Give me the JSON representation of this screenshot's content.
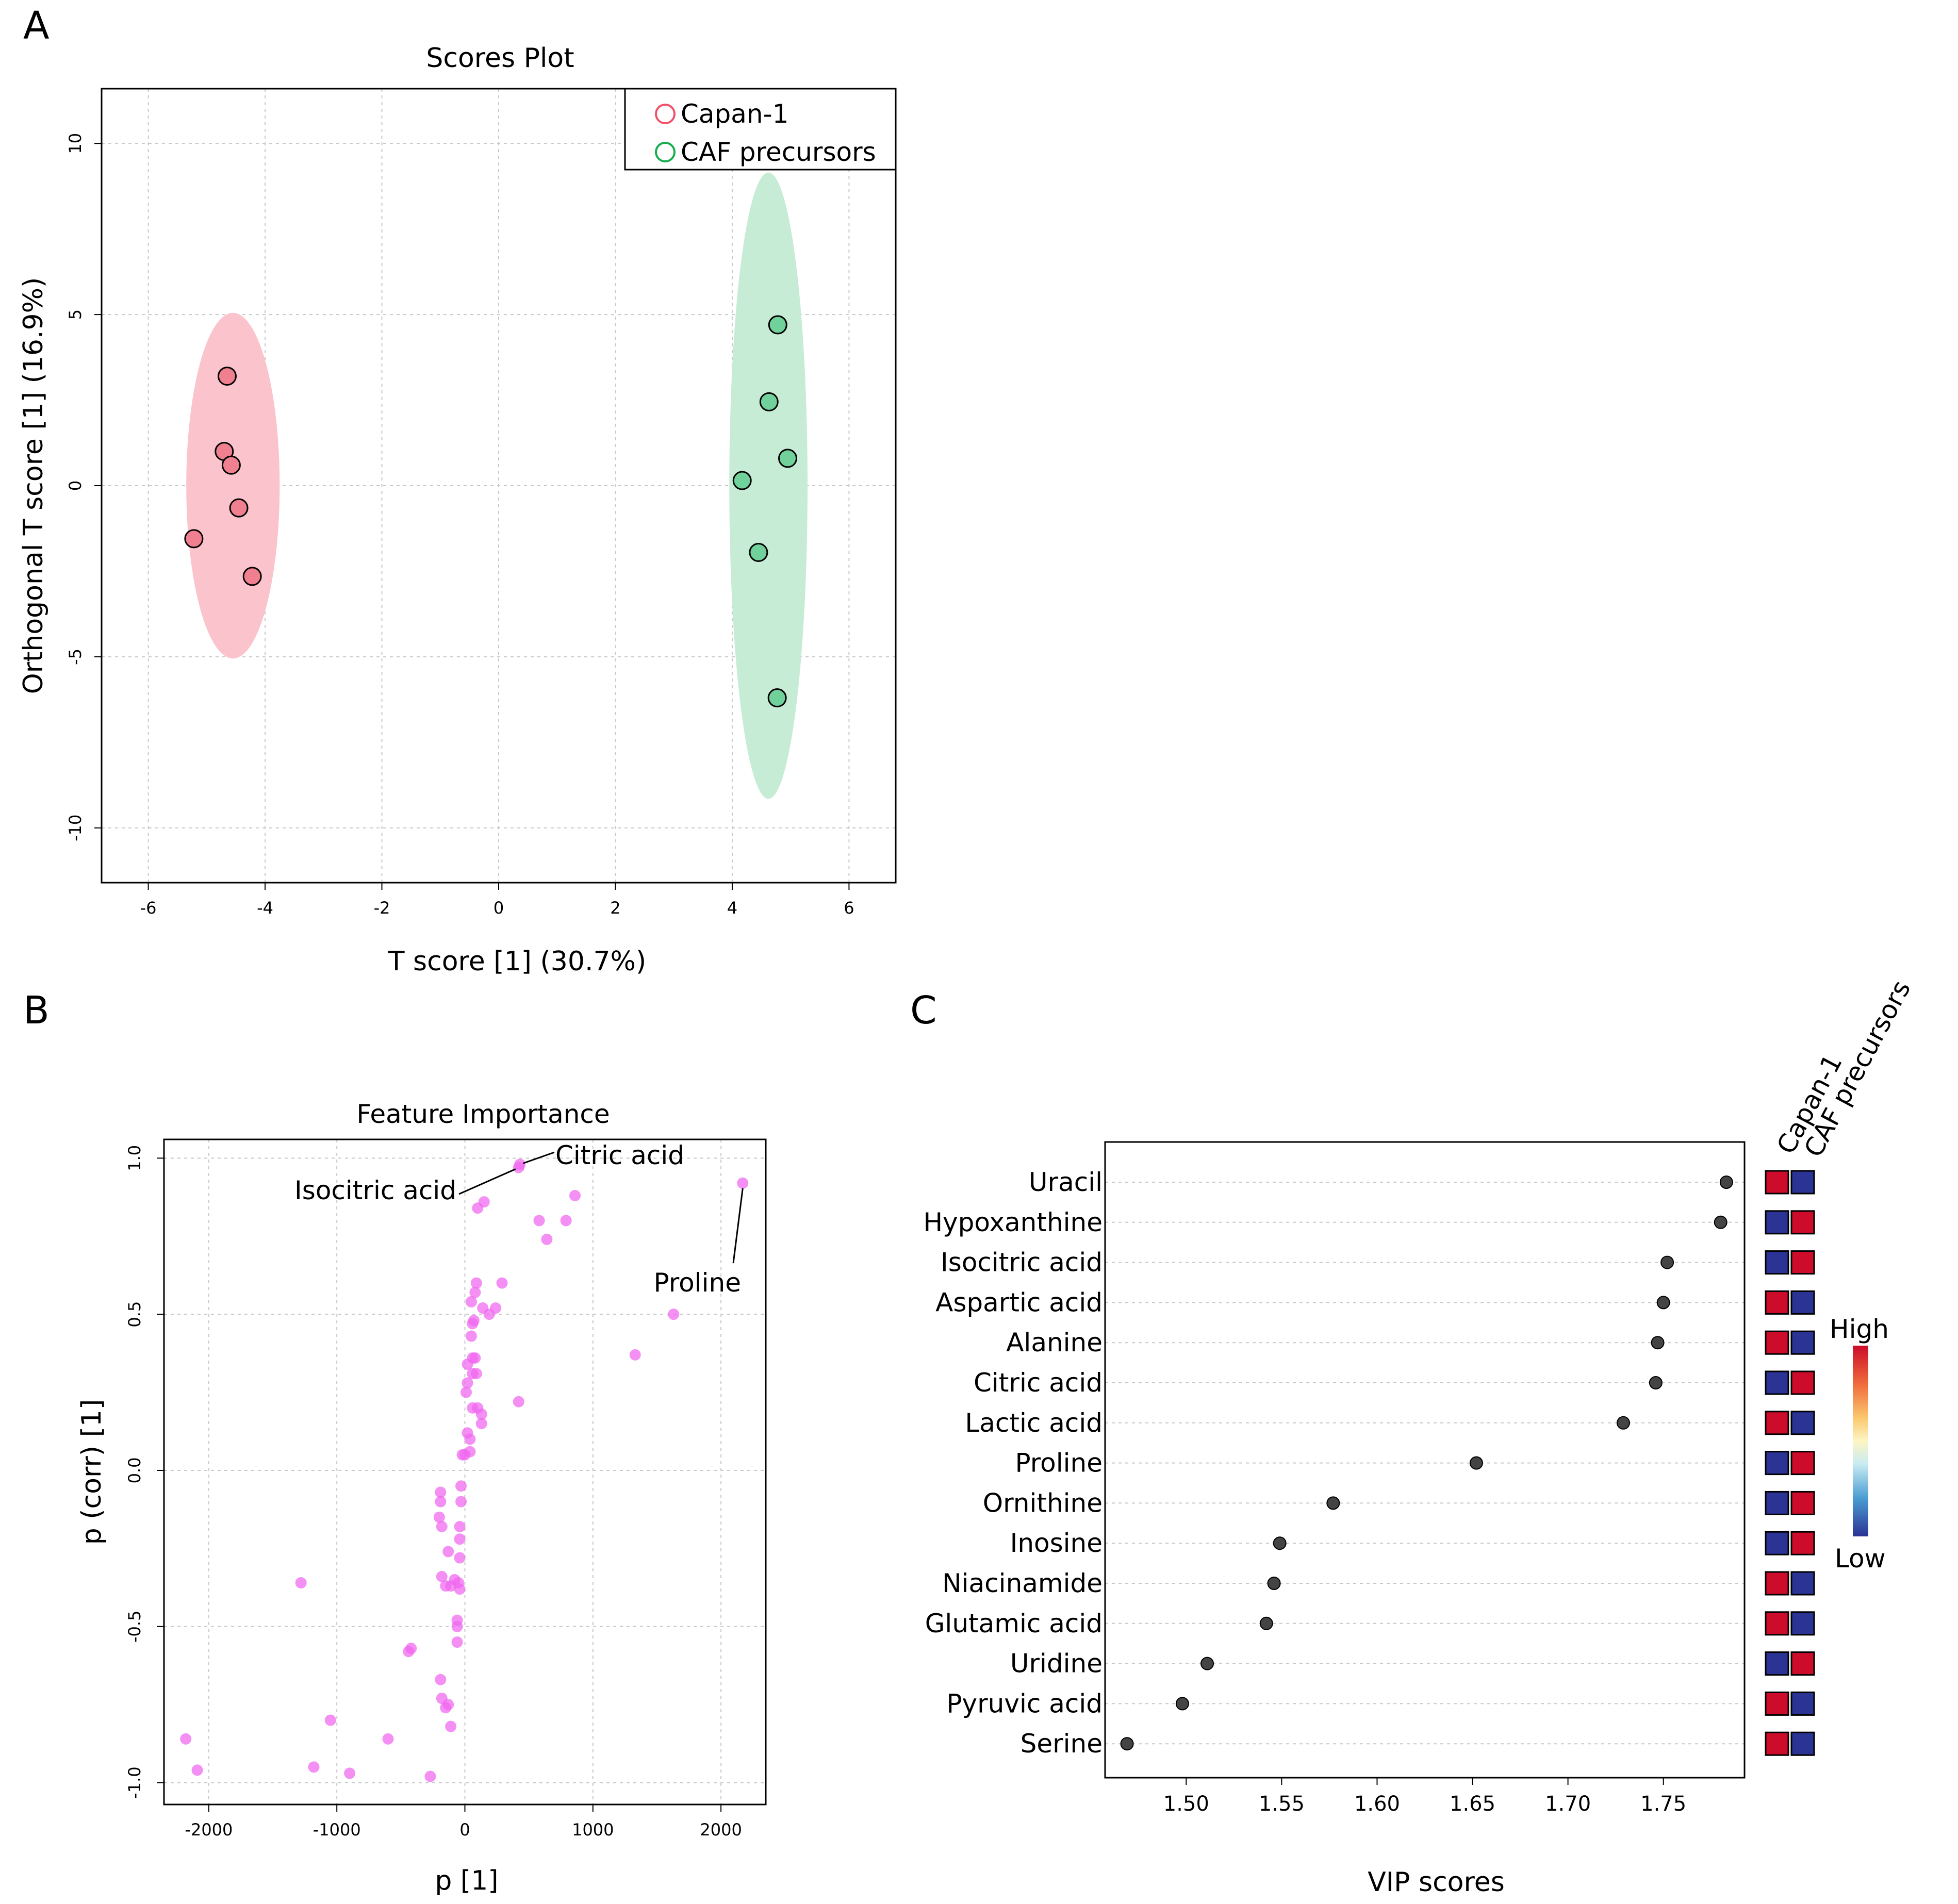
{
  "panel_labels": {
    "a": "A",
    "b": "B",
    "c": "C"
  },
  "colors": {
    "capan": "#f2516b",
    "capan_ellipse": "#fbc3cc",
    "caf": "#16ad4f",
    "caf_ellipse": "#c6ecd6",
    "capan_fill": "#f07f8f",
    "caf_fill": "#70d19a",
    "feature_point": "#f065f0",
    "vip_point": "#444444",
    "heat_high": "#cc0c2a",
    "heat_low": "#2b3394"
  },
  "chart_data": [
    {
      "type": "scatter",
      "title": "Scores Plot",
      "xlabel": "T score [1] (30.7%)",
      "ylabel": "Orthogonal T score [1] (16.9%)",
      "xlim": [
        -6.8,
        6.8
      ],
      "ylim": [
        -11.6,
        11.6
      ],
      "xticks": [
        -6,
        -4,
        -2,
        0,
        2,
        4,
        6
      ],
      "yticks": [
        -10,
        -5,
        0,
        5,
        10
      ],
      "grid": true,
      "legend": {
        "position": "top-right",
        "entries": [
          "Capan-1",
          "CAF precursors"
        ]
      },
      "series": [
        {
          "name": "Capan-1",
          "x": [
            -4.65,
            -4.7,
            -4.58,
            -4.45,
            -5.22,
            -4.22
          ],
          "y": [
            3.2,
            1.0,
            0.6,
            -0.65,
            -1.55,
            -2.65
          ],
          "ellipse": {
            "cx": -4.55,
            "cy": 0,
            "rx": 0.8,
            "ry": 5.05
          }
        },
        {
          "name": "CAF precursors",
          "x": [
            4.78,
            4.63,
            4.95,
            4.17,
            4.45,
            4.77
          ],
          "y": [
            4.7,
            2.45,
            0.8,
            0.15,
            -1.95,
            -6.2
          ],
          "ellipse": {
            "cx": 4.62,
            "cy": 0,
            "rx": 0.67,
            "ry": 9.15
          }
        }
      ]
    },
    {
      "type": "scatter",
      "title": "Feature Importance",
      "xlabel": "p [1]",
      "ylabel": "p (corr) [1]",
      "xlim": [
        -2350,
        2350
      ],
      "ylim": [
        -1.07,
        1.06
      ],
      "xticks": [
        -2000,
        -1000,
        0,
        1000,
        2000
      ],
      "yticks": [
        -1.0,
        -0.5,
        0.0,
        0.5,
        1.0
      ],
      "grid": true,
      "points": [
        [
          -2180,
          -0.86
        ],
        [
          -2090,
          -0.96
        ],
        [
          -1280,
          -0.36
        ],
        [
          -1180,
          -0.95
        ],
        [
          -1050,
          -0.8
        ],
        [
          -900,
          -0.97
        ],
        [
          -600,
          -0.86
        ],
        [
          -440,
          -0.58
        ],
        [
          -420,
          -0.57
        ],
        [
          -270,
          -0.98
        ],
        [
          -190,
          -0.67
        ],
        [
          -180,
          -0.73
        ],
        [
          -150,
          -0.76
        ],
        [
          -130,
          -0.75
        ],
        [
          -110,
          -0.82
        ],
        [
          -180,
          -0.34
        ],
        [
          -150,
          -0.37
        ],
        [
          -110,
          -0.37
        ],
        [
          -80,
          -0.35
        ],
        [
          -50,
          -0.36
        ],
        [
          -40,
          -0.38
        ],
        [
          -190,
          -0.07
        ],
        [
          -190,
          -0.1
        ],
        [
          -200,
          -0.15
        ],
        [
          -180,
          -0.18
        ],
        [
          -130,
          -0.26
        ],
        [
          -60,
          -0.48
        ],
        [
          -60,
          -0.5
        ],
        [
          -60,
          -0.55
        ],
        [
          -40,
          -0.28
        ],
        [
          -40,
          -0.22
        ],
        [
          -40,
          -0.18
        ],
        [
          -30,
          -0.1
        ],
        [
          -30,
          -0.05
        ],
        [
          -20,
          0.05
        ],
        [
          0,
          0.05
        ],
        [
          20,
          0.12
        ],
        [
          40,
          0.06
        ],
        [
          40,
          0.1
        ],
        [
          60,
          0.2
        ],
        [
          100,
          0.2
        ],
        [
          130,
          0.18
        ],
        [
          130,
          0.15
        ],
        [
          10,
          0.25
        ],
        [
          20,
          0.28
        ],
        [
          60,
          0.31
        ],
        [
          90,
          0.31
        ],
        [
          20,
          0.34
        ],
        [
          60,
          0.36
        ],
        [
          80,
          0.36
        ],
        [
          50,
          0.43
        ],
        [
          60,
          0.47
        ],
        [
          70,
          0.48
        ],
        [
          50,
          0.54
        ],
        [
          80,
          0.57
        ],
        [
          90,
          0.6
        ],
        [
          140,
          0.52
        ],
        [
          190,
          0.5
        ],
        [
          240,
          0.52
        ],
        [
          290,
          0.6
        ],
        [
          420,
          0.22
        ],
        [
          100,
          0.84
        ],
        [
          150,
          0.86
        ],
        [
          580,
          0.8
        ],
        [
          640,
          0.74
        ],
        [
          790,
          0.8
        ],
        [
          860,
          0.88
        ],
        [
          1330,
          0.37
        ],
        [
          1630,
          0.5
        ],
        [
          2170,
          0.92
        ],
        [
          420,
          0.97
        ],
        [
          430,
          0.98
        ]
      ],
      "annotations": [
        {
          "label": "Citric acid",
          "x": 430,
          "y": 0.98
        },
        {
          "label": "Isocitric acid",
          "x": 420,
          "y": 0.97
        },
        {
          "label": "Proline",
          "x": 2170,
          "y": 0.92
        }
      ]
    },
    {
      "type": "dot",
      "xlabel": "VIP scores",
      "xlim": [
        1.4575,
        1.7925
      ],
      "xticks": [
        "1.50",
        "1.55",
        "1.60",
        "1.65",
        "1.70",
        "1.75"
      ],
      "xtick_values": [
        1.5,
        1.55,
        1.6,
        1.65,
        1.7,
        1.75
      ],
      "categories": [
        "Uracil",
        "Hypoxanthine",
        "Isocitric acid",
        "Aspartic acid",
        "Alanine",
        "Citric acid",
        "Lactic acid",
        "Proline",
        "Ornithine",
        "Inosine",
        "Niacinamide",
        "Glutamic acid",
        "Uridine",
        "Pyruvic acid",
        "Serine"
      ],
      "values": [
        1.783,
        1.78,
        1.752,
        1.75,
        1.747,
        1.746,
        1.729,
        1.652,
        1.577,
        1.549,
        1.546,
        1.542,
        1.511,
        1.498,
        1.469
      ],
      "heatmap": {
        "columns": [
          "Capan-1",
          "CAF precursors"
        ],
        "levels": [
          [
            "High",
            "Low"
          ],
          [
            "Low",
            "High"
          ],
          [
            "Low",
            "High"
          ],
          [
            "High",
            "Low"
          ],
          [
            "High",
            "Low"
          ],
          [
            "Low",
            "High"
          ],
          [
            "High",
            "Low"
          ],
          [
            "Low",
            "High"
          ],
          [
            "Low",
            "High"
          ],
          [
            "Low",
            "High"
          ],
          [
            "High",
            "Low"
          ],
          [
            "High",
            "Low"
          ],
          [
            "Low",
            "High"
          ],
          [
            "High",
            "Low"
          ],
          [
            "High",
            "Low"
          ]
        ],
        "colorbar": {
          "high": "High",
          "low": "Low"
        }
      }
    }
  ]
}
